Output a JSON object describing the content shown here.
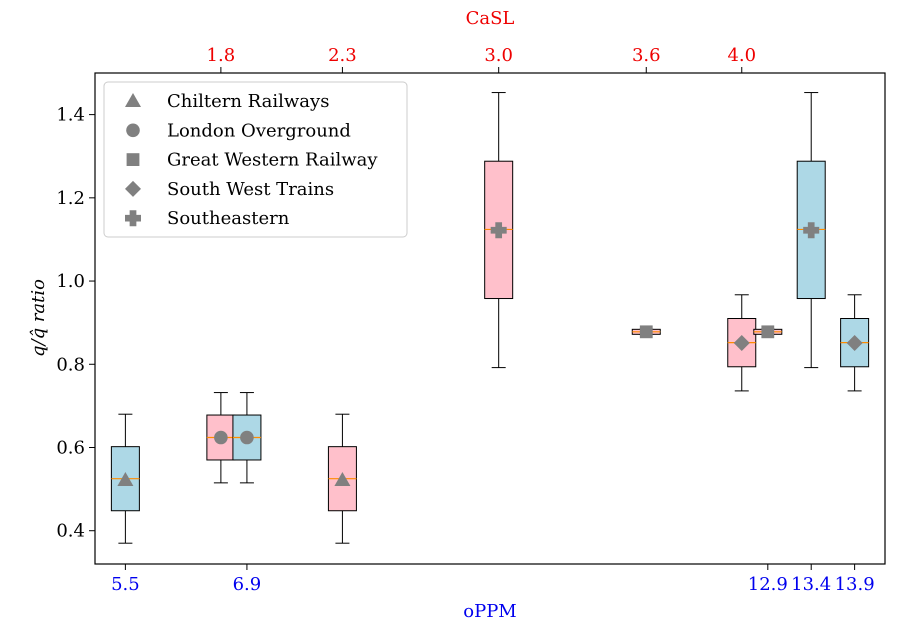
{
  "chart_data": {
    "type": "box",
    "ylabel": "q/q̂ ratio",
    "ylim": [
      0.32,
      1.5
    ],
    "yticks": [
      "0.4",
      "0.6",
      "0.8",
      "1.0",
      "1.2",
      "1.4"
    ],
    "bottom_axis": {
      "label": "oPPM",
      "color": "#0000ee",
      "tick_positions": [
        5.5,
        6.9,
        12.9,
        13.4,
        13.9
      ],
      "tick_labels": [
        "5.5",
        "6.9",
        "12.9",
        "13.4",
        "13.9"
      ]
    },
    "top_axis": {
      "label": "CaSL",
      "color": "#ee0000",
      "tick_positions": [
        6.6,
        8.0,
        9.8,
        11.5,
        12.6
      ],
      "tick_labels": [
        "1.8",
        "2.3",
        "3.0",
        "3.6",
        "4.0"
      ]
    },
    "xlim": [
      5.15,
      14.25
    ],
    "grid": false,
    "legend_position": "upper-left",
    "legend": [
      {
        "name": "Chiltern Railways",
        "marker": "triangle"
      },
      {
        "name": "London Overground",
        "marker": "circle"
      },
      {
        "name": "Great Western Railway",
        "marker": "square"
      },
      {
        "name": "South West Trains",
        "marker": "diamond"
      },
      {
        "name": "Southeastern",
        "marker": "plus"
      }
    ],
    "boxes": [
      {
        "x": 5.5,
        "fill": "#add8e6",
        "whisker_low": 0.37,
        "q1": 0.448,
        "median": 0.525,
        "q3": 0.602,
        "whisker_high": 0.68,
        "marker": "triangle",
        "mean": 0.522
      },
      {
        "x": 6.6,
        "fill": "#ffc0cb",
        "whisker_low": 0.515,
        "q1": 0.57,
        "median": 0.624,
        "q3": 0.678,
        "whisker_high": 0.732,
        "marker": "circle",
        "mean": 0.624
      },
      {
        "x": 6.9,
        "fill": "#add8e6",
        "whisker_low": 0.515,
        "q1": 0.57,
        "median": 0.624,
        "q3": 0.678,
        "whisker_high": 0.732,
        "marker": "circle",
        "mean": 0.624
      },
      {
        "x": 8.0,
        "fill": "#ffc0cb",
        "whisker_low": 0.37,
        "q1": 0.448,
        "median": 0.525,
        "q3": 0.602,
        "whisker_high": 0.68,
        "marker": "triangle",
        "mean": 0.522
      },
      {
        "x": 9.8,
        "fill": "#ffc0cb",
        "whisker_low": 0.792,
        "q1": 0.958,
        "median": 1.124,
        "q3": 1.288,
        "whisker_high": 1.453,
        "marker": "plus",
        "mean": 1.122
      },
      {
        "x": 11.5,
        "fill": "#ffc0cb",
        "whisker_low": 0.872,
        "q1": 0.872,
        "median": 0.878,
        "q3": 0.884,
        "whisker_high": 0.884,
        "marker": "square",
        "mean": 0.878
      },
      {
        "x": 12.6,
        "fill": "#ffc0cb",
        "whisker_low": 0.736,
        "q1": 0.794,
        "median": 0.852,
        "q3": 0.91,
        "whisker_high": 0.967,
        "marker": "diamond",
        "mean": 0.851
      },
      {
        "x": 12.9,
        "fill": "#ffc0cb",
        "whisker_low": 0.872,
        "q1": 0.872,
        "median": 0.878,
        "q3": 0.884,
        "whisker_high": 0.884,
        "marker": "square",
        "mean": 0.878
      },
      {
        "x": 13.4,
        "fill": "#add8e6",
        "whisker_low": 0.792,
        "q1": 0.958,
        "median": 1.124,
        "q3": 1.288,
        "whisker_high": 1.453,
        "marker": "plus",
        "mean": 1.122
      },
      {
        "x": 13.9,
        "fill": "#add8e6",
        "whisker_low": 0.736,
        "q1": 0.794,
        "median": 0.852,
        "q3": 0.91,
        "whisker_high": 0.967,
        "marker": "diamond",
        "mean": 0.851
      }
    ],
    "colors": {
      "median": "#ff8c00",
      "marker": "#808080",
      "box_edge": "#000000",
      "axes": "#000000"
    }
  }
}
